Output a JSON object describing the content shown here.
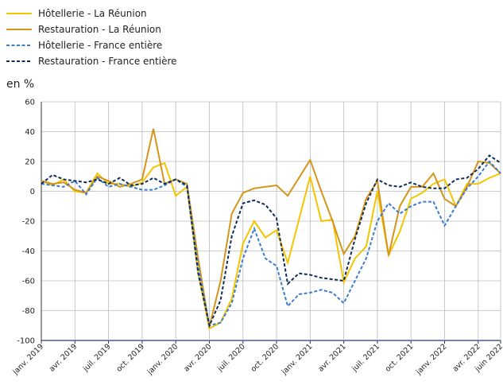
{
  "chart_data": {
    "type": "line",
    "ylabel": "en %",
    "categories": [
      "janv. 2019",
      null,
      null,
      "avr. 2019",
      null,
      null,
      "juil. 2019",
      null,
      null,
      "oct. 2019",
      null,
      null,
      "janv. 2020",
      null,
      null,
      "avr. 2020",
      null,
      null,
      "juil. 2020",
      null,
      null,
      "oct. 2020",
      null,
      null,
      "janv. 2021",
      null,
      null,
      "avr. 2021",
      null,
      null,
      "juil. 2021",
      null,
      null,
      "oct. 2021",
      null,
      null,
      "janv. 2022",
      null,
      null,
      "avr. 2022",
      null,
      "juin 2022"
    ],
    "series": [
      {
        "name": "Hôtellerie - La Réunion",
        "color": "#f5c400",
        "dashed": false,
        "values": [
          7,
          4,
          8,
          0,
          -1,
          12,
          5,
          5,
          3,
          6,
          16,
          19,
          -3,
          3,
          -55,
          -92,
          -88,
          -72,
          -35,
          -20,
          -31,
          -26,
          -48,
          -19,
          10,
          -20,
          -19,
          -61,
          -45,
          -37,
          0,
          -43,
          -27,
          -5,
          -1,
          5,
          8,
          -10,
          5,
          5,
          9,
          12
        ]
      },
      {
        "name": "Restauration - La Réunion",
        "color": "#d4951a",
        "dashed": false,
        "values": [
          7,
          5,
          6,
          1,
          -1,
          10,
          7,
          3,
          5,
          8,
          42,
          5,
          8,
          5,
          -45,
          -91,
          -60,
          -15,
          -1,
          2,
          3,
          4,
          -3,
          9,
          21,
          0,
          -20,
          -42,
          -30,
          -5,
          7,
          -43,
          -10,
          3,
          3,
          12,
          -5,
          -10,
          3,
          20,
          19,
          12
        ]
      },
      {
        "name": "Hôtellerie - France entière",
        "color": "#3a7cd0",
        "dashed": true,
        "values": [
          5,
          4,
          3,
          7,
          -2,
          9,
          3,
          5,
          3,
          1,
          1,
          4,
          8,
          3,
          -50,
          -90,
          -88,
          -75,
          -45,
          -25,
          -45,
          -50,
          -77,
          -69,
          -68,
          -66,
          -68,
          -75,
          -60,
          -45,
          -20,
          -8,
          -15,
          -10,
          -7,
          -7,
          -23,
          -10,
          2,
          10,
          20,
          12
        ]
      },
      {
        "name": "Restauration - France entière",
        "color": "#0d2d5a",
        "dashed": true,
        "values": [
          5,
          11,
          8,
          7,
          6,
          8,
          5,
          9,
          4,
          5,
          9,
          5,
          8,
          4,
          -55,
          -90,
          -73,
          -30,
          -8,
          -6,
          -9,
          -18,
          -62,
          -55,
          -56,
          -58,
          -59,
          -60,
          -32,
          -8,
          8,
          4,
          3,
          6,
          3,
          2,
          2,
          8,
          9,
          15,
          24,
          19
        ]
      }
    ],
    "ylim": [
      -100,
      60
    ],
    "yticks": [
      -100,
      -80,
      -60,
      -40,
      -20,
      0,
      20,
      40,
      60
    ],
    "grid": true
  }
}
